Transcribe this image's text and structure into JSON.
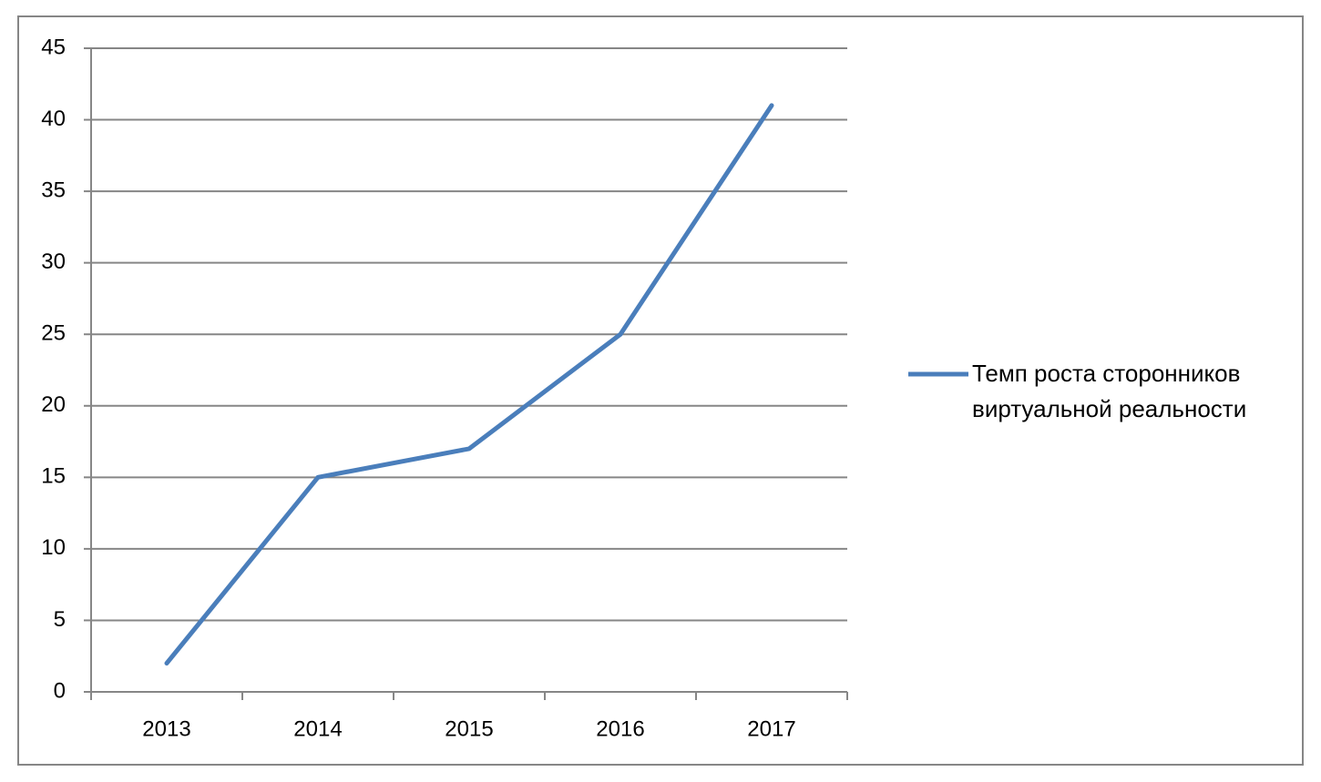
{
  "chart_data": {
    "type": "line",
    "categories": [
      "2013",
      "2014",
      "2015",
      "2016",
      "2017"
    ],
    "series": [
      {
        "name": "Темп роста сторонников виртуальной реальности",
        "color": "#4a7ebb",
        "values": [
          2,
          15,
          17,
          25,
          41
        ]
      }
    ],
    "ylim": [
      0,
      45
    ],
    "yticks": [
      0,
      5,
      10,
      15,
      20,
      25,
      30,
      35,
      40,
      45
    ],
    "grid": true,
    "legend": "right"
  }
}
